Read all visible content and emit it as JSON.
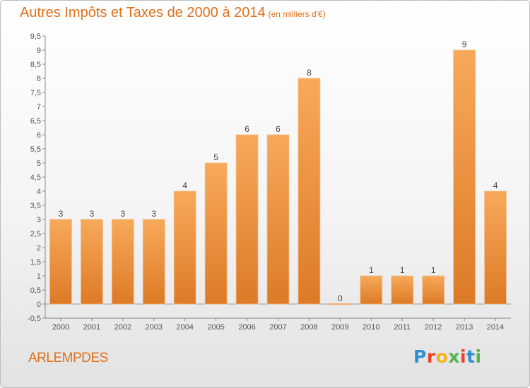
{
  "chart_data": {
    "type": "bar",
    "title": "Autres Impôts et Taxes de 2000 à 2014",
    "unit": "(en milliers d'€)",
    "categories": [
      "2000",
      "2001",
      "2002",
      "2003",
      "2004",
      "2005",
      "2006",
      "2007",
      "2008",
      "2009",
      "2010",
      "2011",
      "2012",
      "2013",
      "2014"
    ],
    "values": [
      3,
      3,
      3,
      3,
      4,
      5,
      6,
      6,
      8,
      0,
      1,
      1,
      1,
      9,
      4
    ],
    "ylim": [
      -0.5,
      9.5
    ],
    "yticks": [
      -0.5,
      0,
      0.5,
      1,
      1.5,
      2,
      2.5,
      3,
      3.5,
      4,
      4.5,
      5,
      5.5,
      6,
      6.5,
      7,
      7.5,
      8,
      8.5,
      9,
      9.5
    ],
    "ytick_labels": [
      "-0,5",
      "0",
      "0,5",
      "1",
      "1,5",
      "2",
      "2,5",
      "3",
      "3,5",
      "4",
      "4,5",
      "5",
      "5,5",
      "6",
      "6,5",
      "7",
      "7,5",
      "8",
      "8,5",
      "9",
      "9,5"
    ],
    "grid": false,
    "legend": "none",
    "bar_color": "#f29a45"
  },
  "commune": "ARLEMPDES",
  "brand": {
    "letters": [
      "P",
      "r",
      "o",
      "x",
      "i",
      "t",
      "i"
    ],
    "colors": [
      "#2e8fd1",
      "#e9432e",
      "#f3b51b",
      "#55b548",
      "#e9432e",
      "#2e8fd1",
      "#55b548"
    ]
  }
}
